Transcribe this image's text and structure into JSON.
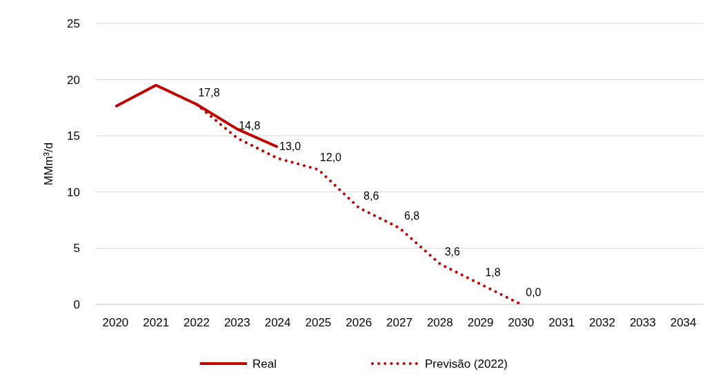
{
  "chart_data": {
    "type": "line",
    "ylabel": "MMm³/d",
    "categories": [
      "2020",
      "2021",
      "2022",
      "2023",
      "2024",
      "2025",
      "2026",
      "2027",
      "2028",
      "2029",
      "2030",
      "2031",
      "2032",
      "2033",
      "2034"
    ],
    "series": [
      {
        "name": "Real",
        "color": "#c00000",
        "line_style": "solid",
        "values": [
          17.6,
          19.5,
          17.8,
          15.6,
          14.0,
          null,
          null,
          null,
          null,
          null,
          null,
          null,
          null,
          null,
          null
        ]
      },
      {
        "name": "Previsão (2022)",
        "color": "#c00000",
        "line_style": "dotted",
        "values": [
          null,
          null,
          17.8,
          14.8,
          13.0,
          12.0,
          8.6,
          6.8,
          3.6,
          1.8,
          0.0,
          null,
          null,
          null,
          null
        ],
        "value_labels": [
          null,
          null,
          "17,8",
          "14,8",
          "13,0",
          "12,0",
          "8,6",
          "6,8",
          "3,6",
          "1,8",
          "0,0",
          null,
          null,
          null,
          null
        ]
      }
    ],
    "ylim": [
      0,
      25
    ],
    "yticks": [
      0,
      5,
      10,
      15,
      20,
      25
    ],
    "grid": "y",
    "legend": "bottom",
    "marker": "none"
  }
}
